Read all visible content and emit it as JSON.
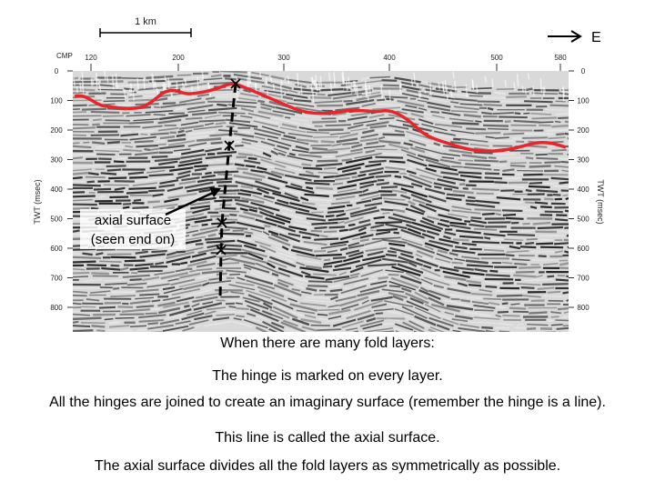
{
  "scale_bar": {
    "label": "1 km"
  },
  "direction": {
    "label": "E"
  },
  "top_axis": {
    "title": "CMP",
    "ticks": [
      "120",
      "200",
      "300",
      "400",
      "500",
      "580"
    ]
  },
  "left_axis": {
    "title": "TWT (msec)",
    "ticks": [
      "0",
      "100",
      "200",
      "300",
      "400",
      "500",
      "600",
      "700",
      "800"
    ]
  },
  "right_axis": {
    "title": "TWT (msec)",
    "ticks": [
      "0",
      "100",
      "200",
      "300",
      "400",
      "500",
      "600",
      "700",
      "800"
    ]
  },
  "annotation": {
    "line1": "axial surface",
    "line2": "(seen end on)"
  },
  "colors": {
    "horizon": "#e8262a",
    "seismic_dark": "#222222",
    "axial_line": "#000000"
  },
  "captions": [
    "When there are many fold layers:",
    "The hinge is marked on every layer.",
    "All the hinges are joined to create an imaginary surface (remember the hinge is a line).",
    "This line is called the axial surface.",
    "The axial surface divides all the fold layers as symmetrically as possible."
  ]
}
